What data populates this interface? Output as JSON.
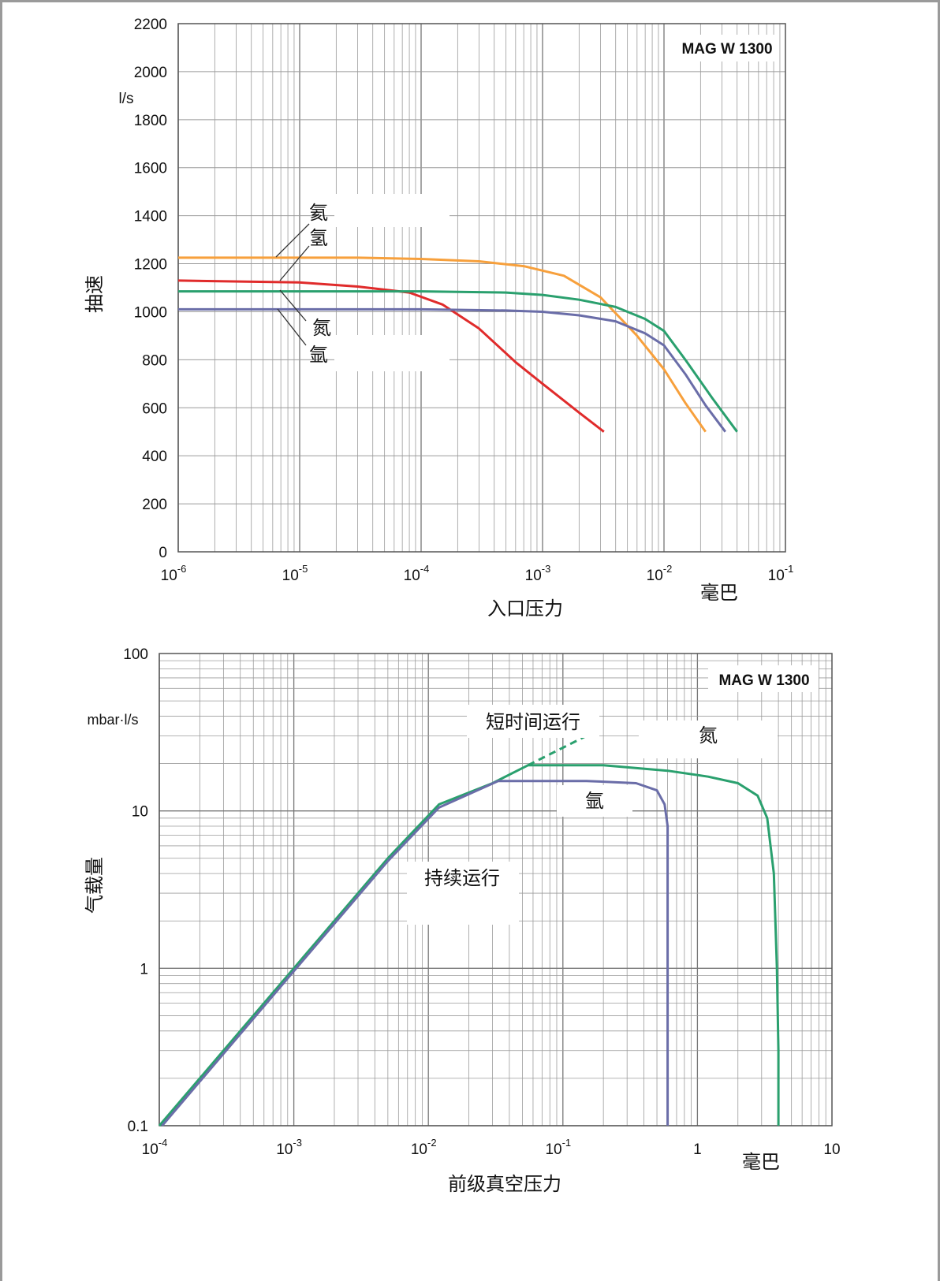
{
  "colors": {
    "orange": "#f7a03c",
    "red": "#e02b2b",
    "green": "#2aa06e",
    "blue": "#6a6da8",
    "grid": "#9b9b9b"
  },
  "chart_data": [
    {
      "type": "line",
      "title": "MAG W 1300",
      "xlabel": "入口压力",
      "xunit": "毫巴",
      "ylabel": "抽速",
      "yunit": "l/s",
      "xscale": "log",
      "xlim": [
        1e-06,
        0.1
      ],
      "ylim": [
        0,
        2200
      ],
      "xticks": [
        1e-06,
        1e-05,
        0.0001,
        0.001,
        0.01,
        0.1
      ],
      "xtick_labels": [
        {
          "base": "10",
          "exp": "-6"
        },
        {
          "base": "10",
          "exp": "-5"
        },
        {
          "base": "10",
          "exp": "-4"
        },
        {
          "base": "10",
          "exp": "-3"
        },
        {
          "base": "10",
          "exp": "-2"
        },
        {
          "base": "10",
          "exp": "-1"
        }
      ],
      "yticks": [
        0,
        200,
        400,
        600,
        800,
        1000,
        1200,
        1400,
        1600,
        1800,
        2000,
        2200
      ],
      "ytick_labels": [
        "0",
        "200",
        "400",
        "600",
        "800",
        "1000",
        "1200",
        "1400",
        "1600",
        "1800",
        "2000",
        "2200"
      ],
      "grid": true,
      "annotations": [
        "氦",
        "氢",
        "氮",
        "氩"
      ],
      "series": [
        {
          "key": "he",
          "color": "#f7a03c",
          "x": [
            1e-06,
            3e-05,
            0.0001,
            0.0003,
            0.0007,
            0.0015,
            0.003,
            0.006,
            0.01,
            0.015,
            0.022
          ],
          "y": [
            1225,
            1225,
            1220,
            1210,
            1190,
            1150,
            1060,
            900,
            760,
            620,
            500
          ]
        },
        {
          "key": "h2",
          "color": "#e02b2b",
          "x": [
            1e-06,
            1e-05,
            3e-05,
            8e-05,
            0.00015,
            0.0003,
            0.0006,
            0.001,
            0.002,
            0.0032
          ],
          "y": [
            1130,
            1122,
            1105,
            1080,
            1030,
            930,
            790,
            700,
            580,
            500
          ]
        },
        {
          "key": "n2",
          "color": "#2aa06e",
          "x": [
            1e-06,
            0.0001,
            0.0005,
            0.001,
            0.002,
            0.004,
            0.007,
            0.01,
            0.015,
            0.025,
            0.04
          ],
          "y": [
            1085,
            1085,
            1080,
            1070,
            1050,
            1020,
            970,
            920,
            800,
            640,
            500
          ]
        },
        {
          "key": "ar",
          "color": "#6a6da8",
          "x": [
            1e-06,
            0.0001,
            0.0005,
            0.001,
            0.002,
            0.004,
            0.007,
            0.01,
            0.015,
            0.022,
            0.032
          ],
          "y": [
            1010,
            1010,
            1005,
            1000,
            985,
            960,
            910,
            860,
            740,
            610,
            500
          ]
        }
      ]
    },
    {
      "type": "line",
      "title": "MAG W 1300",
      "xlabel": "前级真空压力",
      "xunit": "毫巴",
      "ylabel": "气载量",
      "yunit": "mbar·l/s",
      "xscale": "log",
      "yscale": "log",
      "xlim": [
        0.0001,
        10
      ],
      "ylim": [
        0.1,
        100
      ],
      "xticks": [
        0.0001,
        0.001,
        0.01,
        0.1,
        1,
        10
      ],
      "xtick_labels": [
        {
          "base": "10",
          "exp": "-4"
        },
        {
          "base": "10",
          "exp": "-3"
        },
        {
          "base": "10",
          "exp": "-2"
        },
        {
          "base": "10",
          "exp": "-1"
        },
        {
          "base": "1",
          "exp": ""
        },
        {
          "base": "10",
          "exp": ""
        }
      ],
      "yticks": [
        0.1,
        1,
        10,
        100
      ],
      "ytick_labels": [
        "0.1",
        "1",
        "10",
        "100"
      ],
      "grid": true,
      "annotations": [
        "短时间运行",
        "氮",
        "氩",
        "持续运行"
      ],
      "series": [
        {
          "key": "n2",
          "color": "#2aa06e",
          "x": [
            0.0001,
            0.001,
            0.005,
            0.012,
            0.03,
            0.055,
            0.2,
            0.6,
            1.2,
            2.0,
            2.8,
            3.3,
            3.7,
            3.9,
            4.0,
            4.0
          ],
          "y": [
            0.1,
            1.0,
            5.0,
            11.0,
            15.0,
            19.5,
            19.5,
            18.0,
            16.5,
            15.0,
            12.5,
            9.0,
            4.0,
            1.0,
            0.3,
            0.1
          ]
        },
        {
          "key": "n2-short",
          "color": "#2aa06e",
          "dashed": true,
          "x": [
            0.055,
            0.15
          ],
          "y": [
            19.5,
            30.0
          ]
        },
        {
          "key": "ar",
          "color": "#6a6da8",
          "x": [
            0.000105,
            0.001,
            0.005,
            0.012,
            0.033,
            0.15,
            0.35,
            0.5,
            0.57,
            0.6,
            0.6,
            0.6,
            0.6
          ],
          "y": [
            0.1,
            0.96,
            4.8,
            10.5,
            15.5,
            15.5,
            15.0,
            13.5,
            11.0,
            8.0,
            3.0,
            0.5,
            0.1
          ]
        }
      ]
    }
  ]
}
